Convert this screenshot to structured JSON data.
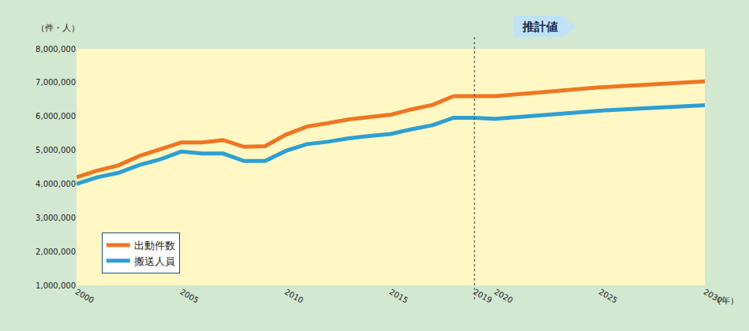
{
  "chart_data": {
    "type": "line",
    "ylabel": "（件・人）",
    "xlabel": "（年）",
    "annotations": [
      {
        "text": "推計値",
        "x": 2019
      }
    ],
    "x": [
      2000,
      2001,
      2002,
      2003,
      2004,
      2005,
      2006,
      2007,
      2008,
      2009,
      2010,
      2011,
      2012,
      2013,
      2014,
      2015,
      2016,
      2017,
      2018,
      2019,
      2020,
      2025,
      2030
    ],
    "series": [
      {
        "name": "出動件数",
        "color": "#ee7623",
        "values": [
          4200000,
          4400000,
          4550000,
          4830000,
          5030000,
          5230000,
          5230000,
          5300000,
          5100000,
          5120000,
          5460000,
          5700000,
          5800000,
          5910000,
          5980000,
          6050000,
          6210000,
          6340000,
          6600000,
          6600000,
          6600000,
          6860000,
          7040000
        ]
      },
      {
        "name": "搬送人員",
        "color": "#2e9fd3",
        "values": [
          4000000,
          4200000,
          4330000,
          4560000,
          4730000,
          4960000,
          4900000,
          4900000,
          4680000,
          4680000,
          4980000,
          5180000,
          5250000,
          5350000,
          5420000,
          5480000,
          5620000,
          5740000,
          5960000,
          5960000,
          5930000,
          6170000,
          6330000
        ]
      }
    ],
    "xlim": [
      2000,
      2030
    ],
    "xticks": [
      2000,
      2005,
      2010,
      2015,
      2019,
      2020,
      2025,
      2030
    ],
    "ylim": [
      1000000,
      8000000
    ],
    "yticks": [
      {
        "value": 1000000,
        "label": "1,000,000"
      },
      {
        "value": 2000000,
        "label": "2,000,000"
      },
      {
        "value": 3000000,
        "label": "3,000,000"
      },
      {
        "value": 4000000,
        "label": "4,000,000"
      },
      {
        "value": 5000000,
        "label": "5,000,000"
      },
      {
        "value": 6000000,
        "label": "6,000,000"
      },
      {
        "value": 7000000,
        "label": "7,000,000"
      },
      {
        "value": 8000000,
        "label": "8,000,000"
      }
    ],
    "grid": false,
    "legend": "lower left"
  }
}
